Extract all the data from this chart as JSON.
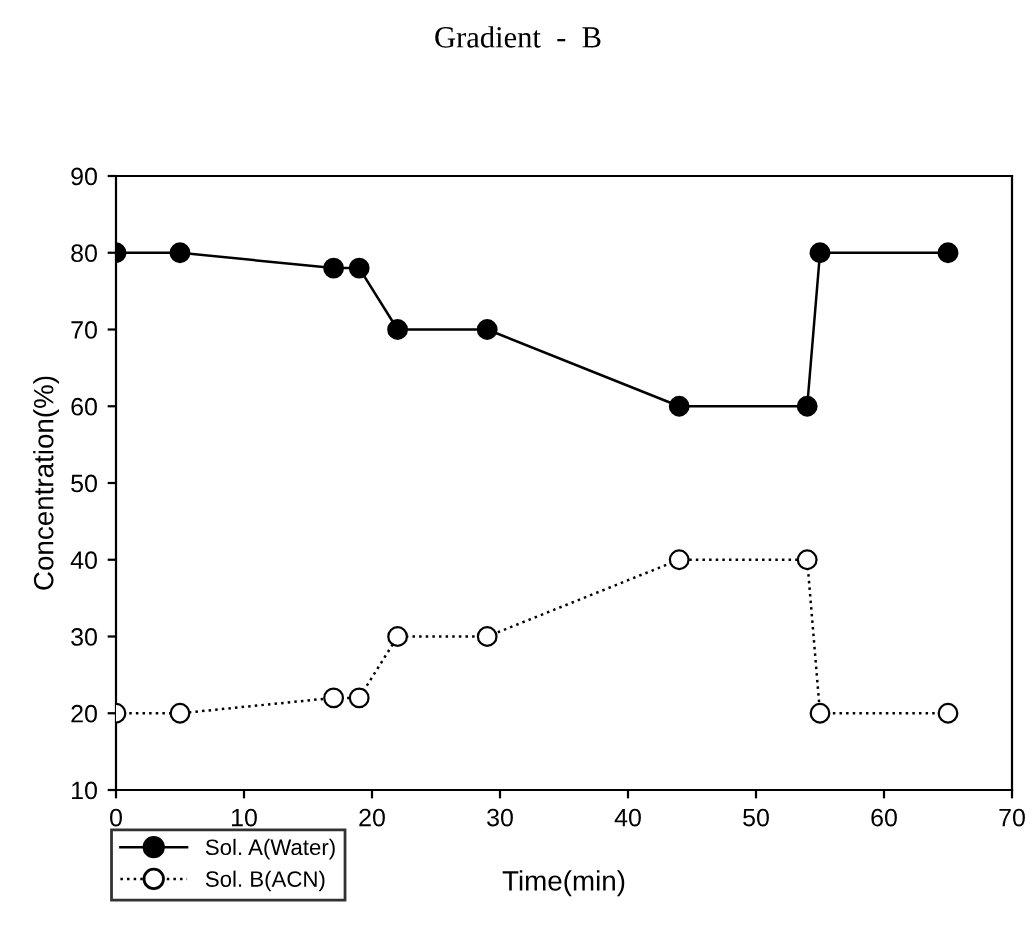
{
  "chart_data": {
    "type": "line",
    "title": "Gradient  -  B",
    "xlabel": "Time(min)",
    "ylabel": "Concentration(%)",
    "x": [
      0,
      5,
      17,
      19,
      22,
      29,
      44,
      54,
      55,
      65
    ],
    "series": [
      {
        "name": "Sol. A(Water)",
        "color": "#000000",
        "colors": [
          "#000000",
          "#000000",
          "#000000",
          "#000000",
          "#000000",
          "#000000",
          "#000000",
          "#000000",
          "#000000",
          "#000000"
        ],
        "line_style": "solid",
        "values": [
          80,
          80,
          78,
          78,
          70,
          70,
          60,
          60,
          80,
          80
        ]
      },
      {
        "name": "Sol. B(ACN)",
        "color": "#000000",
        "colors": [
          "#ffffff",
          "#ffffff",
          "#ffffff",
          "#ffffff",
          "#ffffff",
          "#ffffff",
          "#ffffff",
          "#ffffff",
          "#ffffff",
          "#ffffff"
        ],
        "line_style": "dotted",
        "values": [
          20,
          20,
          22,
          22,
          30,
          30,
          40,
          40,
          20,
          20
        ]
      }
    ],
    "marker": "circle",
    "xlim": [
      0,
      70
    ],
    "xticks": [
      0,
      10,
      20,
      30,
      40,
      50,
      60,
      70
    ],
    "ylim": [
      10,
      90
    ],
    "yticks": [
      10,
      20,
      30,
      40,
      50,
      60,
      70,
      80,
      90
    ],
    "grid": false,
    "legend": "bottom left"
  }
}
